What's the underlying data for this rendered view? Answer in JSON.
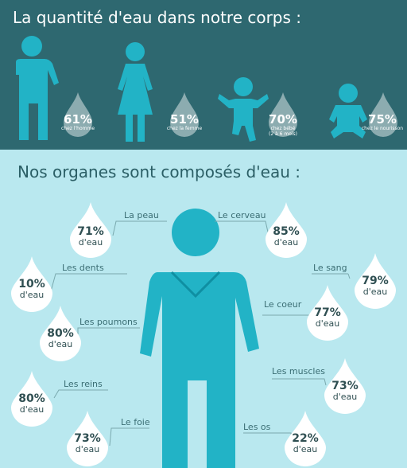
{
  "header": {
    "title": "La quantité d'eau dans notre corps :",
    "stats": [
      {
        "pct": "61%",
        "label": "chez l'homme"
      },
      {
        "pct": "51%",
        "label": "chez la femme"
      },
      {
        "pct": "70%",
        "label": "chez bébé",
        "sub": "(2 à 6 mois)"
      },
      {
        "pct": "75%",
        "label": "chez le nourisson"
      }
    ]
  },
  "organs": {
    "title": "Nos organes sont composés d'eau :",
    "items": [
      {
        "name": "La peau",
        "pct": "71%",
        "unit": "d'eau"
      },
      {
        "name": "Le cerveau",
        "pct": "85%",
        "unit": "d'eau"
      },
      {
        "name": "Les dents",
        "pct": "10%",
        "unit": "d'eau"
      },
      {
        "name": "Le sang",
        "pct": "79%",
        "unit": "d'eau"
      },
      {
        "name": "Les poumons",
        "pct": "80%",
        "unit": "d'eau"
      },
      {
        "name": "Le coeur",
        "pct": "77%",
        "unit": "d'eau"
      },
      {
        "name": "Les reins",
        "pct": "80%",
        "unit": "d'eau"
      },
      {
        "name": "Les muscles",
        "pct": "73%",
        "unit": "d'eau"
      },
      {
        "name": "Le foie",
        "pct": "73%",
        "unit": "d'eau"
      },
      {
        "name": "Les os",
        "pct": "22%",
        "unit": "d'eau"
      }
    ]
  },
  "colors": {
    "dark_band": "#2e6870",
    "light_band": "#b9e8ef",
    "figure": "#22b3c6",
    "drop": "#ffffff"
  }
}
